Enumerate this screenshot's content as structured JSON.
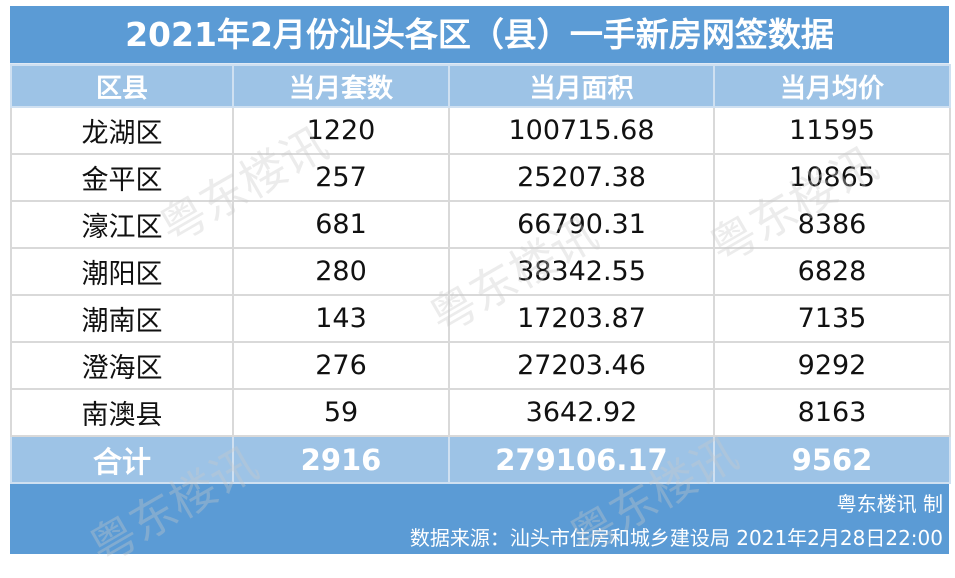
{
  "title": "2021年2月份汕头各区（县）一手新房网签数据",
  "headers": [
    "区县",
    "当月套数",
    "当月面积",
    "当月均价"
  ],
  "rows": [
    [
      "龙湖区",
      "1220",
      "100715.68",
      "11595"
    ],
    [
      "金平区",
      "257",
      "25207.38",
      "10865"
    ],
    [
      "濠江区",
      "681",
      "66790.31",
      "8386"
    ],
    [
      "潮阳区",
      "280",
      "38342.55",
      "6828"
    ],
    [
      "潮南区",
      "143",
      "17203.87",
      "7135"
    ],
    [
      "澄海区",
      "276",
      "27203.46",
      "9292"
    ],
    [
      "南澳县",
      "59",
      "3642.92",
      "8163"
    ]
  ],
  "total": [
    "合计",
    "2916",
    "279106.17",
    "9562"
  ],
  "footer": {
    "maker": "粤东楼讯 制",
    "source": "数据来源：汕头市住房和城乡建设局 2021年2月28日22:00"
  },
  "watermark": "粤东楼讯",
  "colors": {
    "title_bg": "#5b9bd5",
    "header_bg": "#9dc3e6",
    "grid": "#d9d9d9"
  }
}
